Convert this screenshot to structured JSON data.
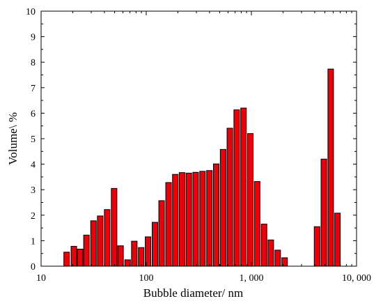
{
  "chart_data": {
    "type": "bar",
    "title": "",
    "xlabel": "Bubble diameter/ nm",
    "ylabel": "Volume\\ %",
    "x_scale": "log",
    "xlim": [
      10,
      10000
    ],
    "ylim": [
      0,
      10
    ],
    "x_ticks": [
      10,
      100,
      1000,
      10000
    ],
    "x_tick_labels": [
      "10",
      "100",
      "1, 000",
      "10, 000"
    ],
    "y_ticks": [
      0,
      1,
      2,
      3,
      4,
      5,
      6,
      7,
      8,
      9,
      10
    ],
    "y_tick_labels": [
      "0",
      "1",
      "2",
      "3",
      "4",
      "5",
      "6",
      "7",
      "8",
      "9",
      "10"
    ],
    "grid": false,
    "bar_color": "#e8000b",
    "bar_edge_color": "#000000",
    "series": [
      {
        "x": [
          17.5,
          20.5,
          23.5,
          27,
          31.5,
          36.5,
          42.5,
          49.5,
          57,
          66.5,
          77,
          89.5,
          104,
          121,
          140,
          163,
          189,
          219,
          254,
          295,
          343,
          399,
          463,
          538,
          624,
          725,
          842,
          978,
          1135,
          1320,
          1530,
          1780,
          2070,
          4210,
          4890,
          5680,
          6590
        ],
        "values": [
          0.55,
          0.78,
          0.67,
          1.22,
          1.78,
          1.97,
          2.22,
          3.05,
          0.8,
          0.25,
          0.98,
          0.73,
          1.15,
          1.72,
          2.57,
          3.28,
          3.6,
          3.67,
          3.65,
          3.68,
          3.72,
          3.75,
          4.01,
          4.58,
          5.41,
          6.13,
          6.2,
          5.2,
          3.32,
          1.65,
          1.03,
          0.63,
          0.33,
          1.55,
          4.2,
          7.73,
          2.08
        ]
      }
    ]
  }
}
